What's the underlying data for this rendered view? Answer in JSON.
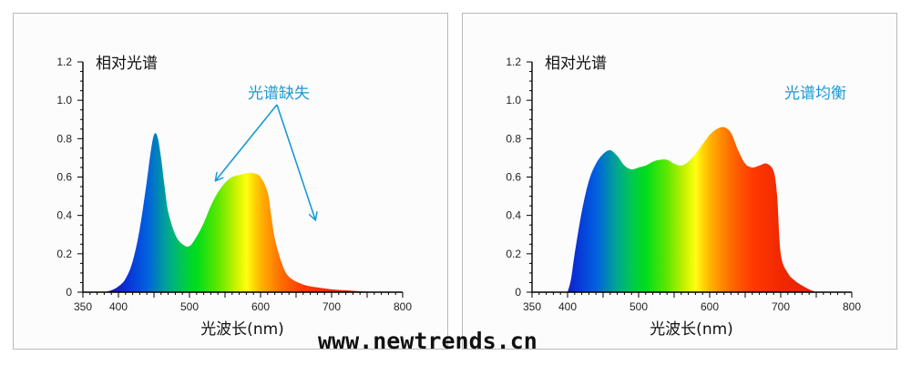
{
  "watermark": "www.newtrends.cn",
  "chart_data": [
    {
      "type": "area",
      "title": "相对光谱",
      "annotation": "光谱缺失",
      "annotation_color": "#1a9ad6",
      "xlabel": "光波长(nm)",
      "ylabel": "",
      "xlim": [
        350,
        800
      ],
      "ylim": [
        0,
        1.2
      ],
      "xticks": [
        "350",
        "400",
        "500",
        "600",
        "700",
        "800"
      ],
      "yticks": [
        "0",
        "0.2",
        "0.4",
        "0.6",
        "0.8",
        "1.0",
        "1.2"
      ],
      "fill": "visible-spectrum gradient",
      "x": [
        380,
        390,
        400,
        410,
        420,
        430,
        440,
        445,
        450,
        455,
        460,
        465,
        470,
        480,
        490,
        500,
        510,
        520,
        530,
        540,
        550,
        560,
        570,
        580,
        590,
        600,
        610,
        615,
        620,
        630,
        640,
        660,
        680,
        700,
        720,
        740,
        760,
        780
      ],
      "y": [
        0,
        0.01,
        0.03,
        0.07,
        0.16,
        0.33,
        0.58,
        0.72,
        0.82,
        0.81,
        0.7,
        0.55,
        0.42,
        0.3,
        0.25,
        0.24,
        0.29,
        0.36,
        0.45,
        0.52,
        0.57,
        0.6,
        0.61,
        0.62,
        0.62,
        0.6,
        0.52,
        0.4,
        0.28,
        0.15,
        0.08,
        0.04,
        0.025,
        0.015,
        0.01,
        0.005,
        0.002,
        0
      ]
    },
    {
      "type": "area",
      "title": "相对光谱",
      "annotation": "光谱均衡",
      "annotation_color": "#1a9ad6",
      "xlabel": "光波长(nm)",
      "ylabel": "",
      "xlim": [
        350,
        800
      ],
      "ylim": [
        0,
        1.2
      ],
      "xticks": [
        "350",
        "400",
        "500",
        "600",
        "700",
        "800"
      ],
      "yticks": [
        "0",
        "0.2",
        "0.4",
        "0.6",
        "0.8",
        "1.0",
        "1.2"
      ],
      "fill": "visible-spectrum gradient",
      "x": [
        400,
        405,
        410,
        420,
        430,
        440,
        450,
        460,
        470,
        480,
        490,
        500,
        510,
        520,
        530,
        540,
        550,
        560,
        570,
        580,
        590,
        600,
        610,
        620,
        630,
        640,
        650,
        660,
        670,
        680,
        690,
        695,
        700,
        710,
        720,
        730,
        740,
        750
      ],
      "y": [
        0,
        0.07,
        0.2,
        0.42,
        0.58,
        0.67,
        0.72,
        0.74,
        0.71,
        0.66,
        0.64,
        0.65,
        0.66,
        0.68,
        0.69,
        0.69,
        0.67,
        0.66,
        0.68,
        0.72,
        0.77,
        0.82,
        0.85,
        0.86,
        0.83,
        0.74,
        0.67,
        0.65,
        0.66,
        0.67,
        0.63,
        0.5,
        0.2,
        0.1,
        0.06,
        0.035,
        0.015,
        0
      ]
    }
  ]
}
